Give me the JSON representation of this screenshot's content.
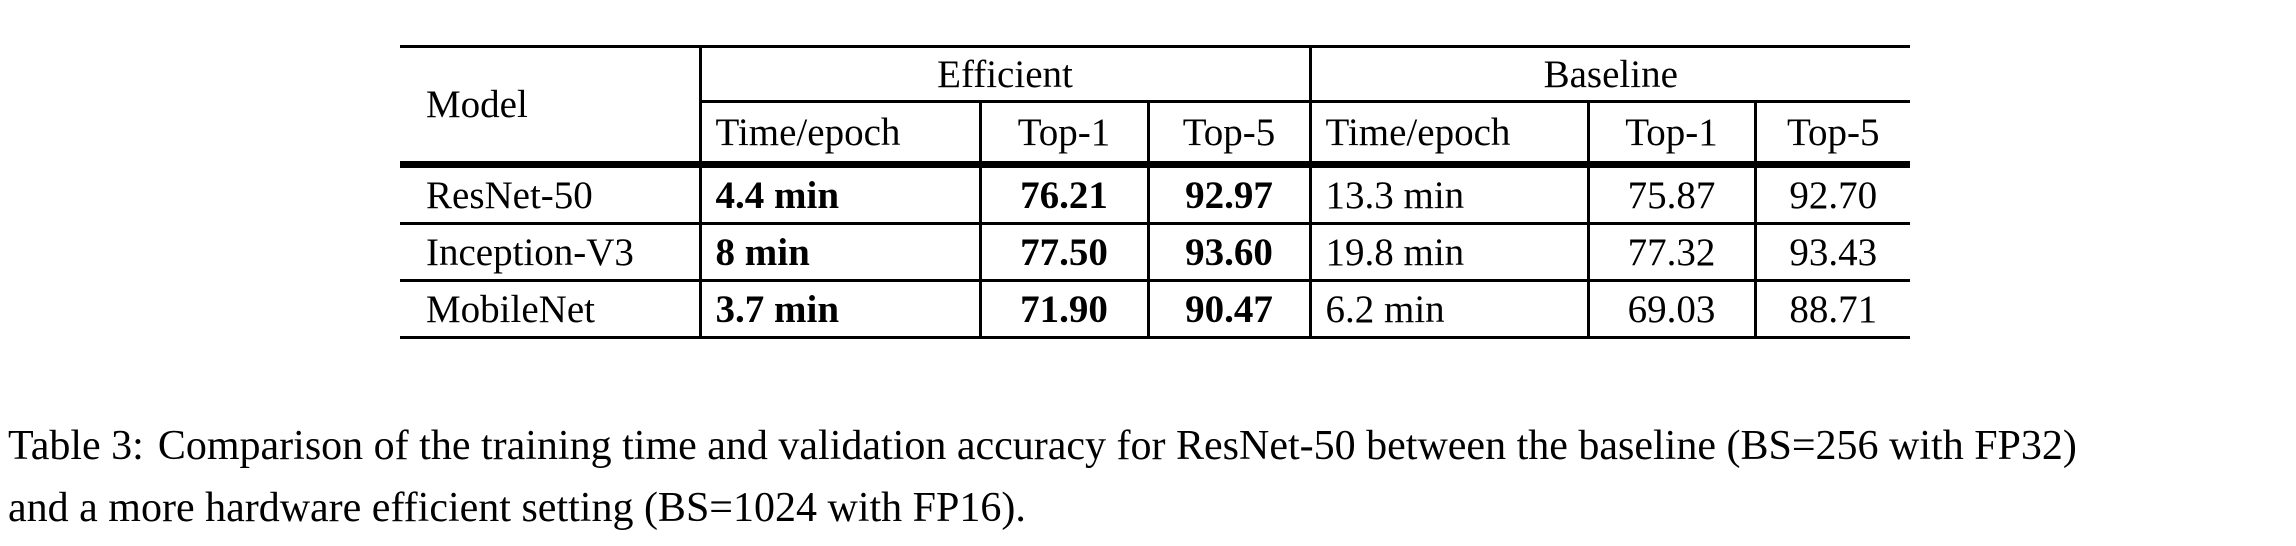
{
  "colors": {
    "background": "#ffffff",
    "text": "#000000",
    "rule": "#000000"
  },
  "table": {
    "model_header": "Model",
    "groups": [
      {
        "label": "Efficient"
      },
      {
        "label": "Baseline"
      }
    ],
    "sub_headers": {
      "efficient": {
        "time": "Time/epoch",
        "top1": "Top-1",
        "top5": "Top-5"
      },
      "baseline": {
        "time": "Time/epoch",
        "top1": "Top-1",
        "top5": "Top-5"
      }
    },
    "rows": [
      {
        "model": "ResNet-50",
        "efficient": {
          "time": "4.4 min",
          "top1": "76.21",
          "top5": "92.97"
        },
        "baseline": {
          "time": "13.3 min",
          "top1": "75.87",
          "top5": "92.70"
        }
      },
      {
        "model": "Inception-V3",
        "efficient": {
          "time": "8 min",
          "top1": "77.50",
          "top5": "93.60"
        },
        "baseline": {
          "time": "19.8 min",
          "top1": "77.32",
          "top5": "93.43"
        }
      },
      {
        "model": "MobileNet",
        "efficient": {
          "time": "3.7 min",
          "top1": "71.90",
          "top5": "90.47"
        },
        "baseline": {
          "time": "6.2 min",
          "top1": "69.03",
          "top5": "88.71"
        }
      }
    ]
  },
  "caption": {
    "label": "Table 3:",
    "line1": "Comparison of the training time and validation accuracy for ResNet-50 between the baseline (BS=256 with FP32)",
    "line2": "and a more hardware efficient setting (BS=1024 with FP16)."
  }
}
